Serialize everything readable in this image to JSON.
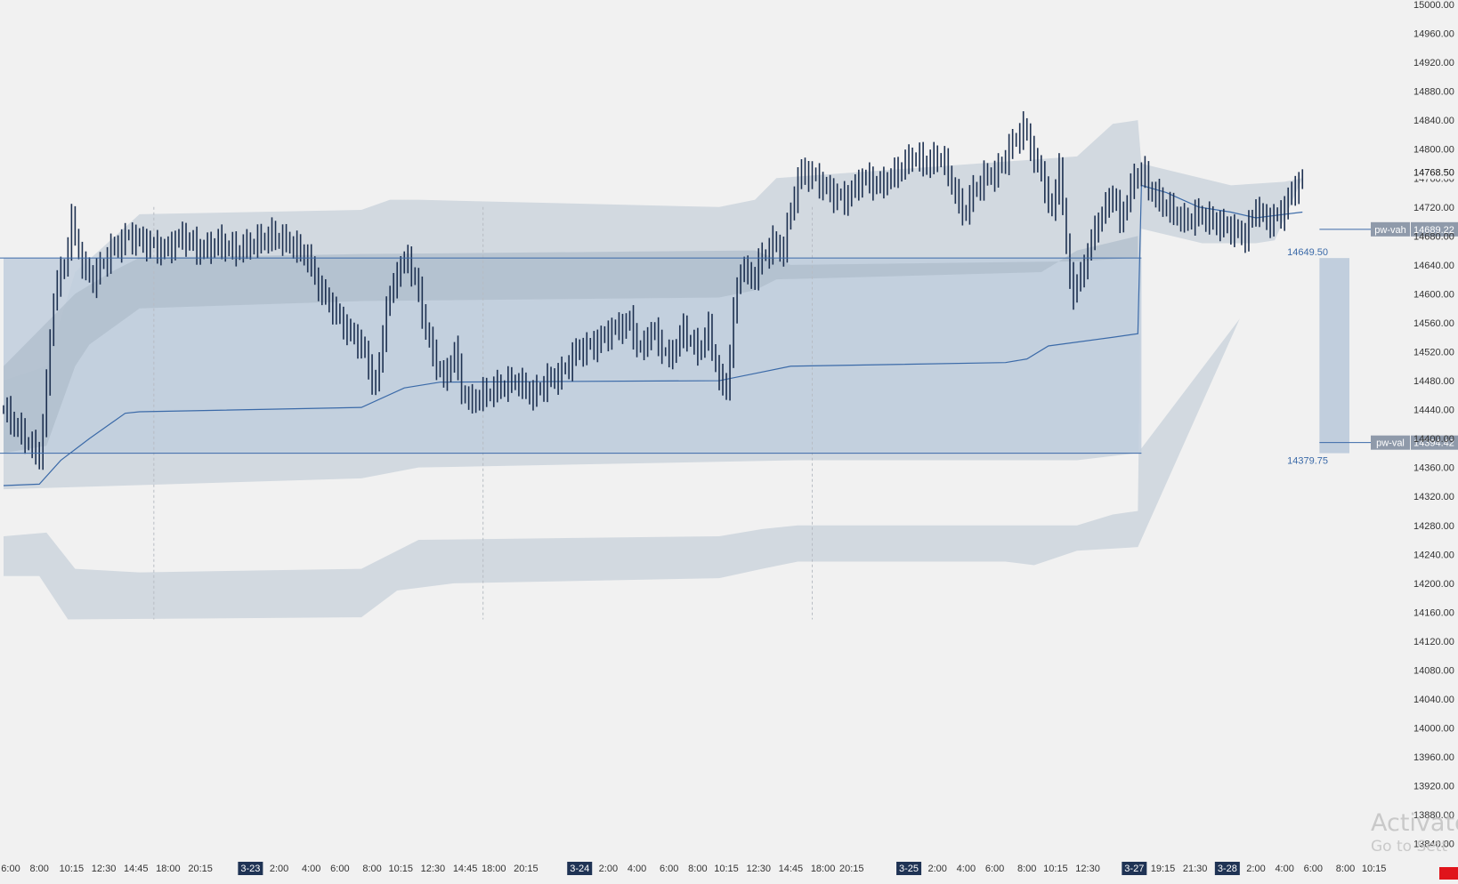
{
  "chart_data": {
    "type": "bar",
    "style": "ohlc-bars",
    "title": "",
    "xlabel": "",
    "ylabel": "",
    "ylim": [
      13820,
      15000
    ],
    "grid": false,
    "y_tick_step": 40,
    "x_ticks": [
      {
        "i": 0,
        "label": "6:00"
      },
      {
        "i": 10,
        "label": "8:00"
      },
      {
        "i": 19,
        "label": "10:15"
      },
      {
        "i": 28,
        "label": "12:30"
      },
      {
        "i": 37,
        "label": "14:45"
      },
      {
        "i": 46,
        "label": "18:00"
      },
      {
        "i": 55,
        "label": "20:15"
      },
      {
        "i": 69,
        "label": "3-23",
        "date": true
      },
      {
        "i": 77,
        "label": "2:00"
      },
      {
        "i": 86,
        "label": "4:00"
      },
      {
        "i": 94,
        "label": "6:00"
      },
      {
        "i": 103,
        "label": "8:00"
      },
      {
        "i": 111,
        "label": "10:15"
      },
      {
        "i": 120,
        "label": "12:30"
      },
      {
        "i": 129,
        "label": "14:45"
      },
      {
        "i": 137,
        "label": "18:00"
      },
      {
        "i": 146,
        "label": "20:15"
      },
      {
        "i": 161,
        "label": "3-24",
        "date": true
      },
      {
        "i": 169,
        "label": "2:00"
      },
      {
        "i": 177,
        "label": "4:00"
      },
      {
        "i": 186,
        "label": "6:00"
      },
      {
        "i": 194,
        "label": "8:00"
      },
      {
        "i": 202,
        "label": "10:15"
      },
      {
        "i": 211,
        "label": "12:30"
      },
      {
        "i": 220,
        "label": "14:45"
      },
      {
        "i": 229,
        "label": "18:00"
      },
      {
        "i": 237,
        "label": "20:15"
      },
      {
        "i": 253,
        "label": "3-25",
        "date": true
      },
      {
        "i": 261,
        "label": "2:00"
      },
      {
        "i": 269,
        "label": "4:00"
      },
      {
        "i": 277,
        "label": "6:00"
      },
      {
        "i": 286,
        "label": "8:00"
      },
      {
        "i": 294,
        "label": "10:15"
      },
      {
        "i": 303,
        "label": "12:30"
      },
      {
        "i": 316,
        "label": "3-27",
        "date": true
      },
      {
        "i": 324,
        "label": "19:15"
      },
      {
        "i": 333,
        "label": "21:30"
      },
      {
        "i": 342,
        "label": "3-28",
        "date": true
      },
      {
        "i": 350,
        "label": "2:00"
      },
      {
        "i": 358,
        "label": "4:00"
      },
      {
        "i": 366,
        "label": "6:00"
      },
      {
        "i": 375,
        "label": "8:00"
      },
      {
        "i": 383,
        "label": "10:15"
      }
    ],
    "session_separators": [
      42,
      134,
      226
    ],
    "closes": [
      [
        0,
        14440
      ],
      [
        6,
        14400
      ],
      [
        10,
        14375
      ],
      [
        12,
        14470
      ],
      [
        14,
        14600
      ],
      [
        17,
        14640
      ],
      [
        19,
        14700
      ],
      [
        22,
        14640
      ],
      [
        25,
        14620
      ],
      [
        30,
        14660
      ],
      [
        35,
        14680
      ],
      [
        40,
        14670
      ],
      [
        45,
        14660
      ],
      [
        50,
        14680
      ],
      [
        55,
        14660
      ],
      [
        60,
        14670
      ],
      [
        65,
        14660
      ],
      [
        70,
        14670
      ],
      [
        75,
        14680
      ],
      [
        80,
        14670
      ],
      [
        85,
        14650
      ],
      [
        88,
        14610
      ],
      [
        92,
        14580
      ],
      [
        96,
        14550
      ],
      [
        100,
        14530
      ],
      [
        104,
        14470
      ],
      [
        107,
        14580
      ],
      [
        110,
        14630
      ],
      [
        113,
        14650
      ],
      [
        116,
        14600
      ],
      [
        119,
        14530
      ],
      [
        123,
        14480
      ],
      [
        126,
        14520
      ],
      [
        128,
        14470
      ],
      [
        130,
        14450
      ],
      [
        134,
        14460
      ],
      [
        138,
        14470
      ],
      [
        143,
        14480
      ],
      [
        148,
        14460
      ],
      [
        152,
        14480
      ],
      [
        156,
        14490
      ],
      [
        160,
        14520
      ],
      [
        165,
        14530
      ],
      [
        170,
        14550
      ],
      [
        175,
        14560
      ],
      [
        178,
        14520
      ],
      [
        181,
        14550
      ],
      [
        186,
        14510
      ],
      [
        190,
        14550
      ],
      [
        194,
        14520
      ],
      [
        197,
        14550
      ],
      [
        200,
        14480
      ],
      [
        202,
        14470
      ],
      [
        204,
        14570
      ],
      [
        206,
        14640
      ],
      [
        209,
        14620
      ],
      [
        212,
        14650
      ],
      [
        215,
        14670
      ],
      [
        218,
        14660
      ],
      [
        220,
        14720
      ],
      [
        223,
        14770
      ],
      [
        227,
        14760
      ],
      [
        231,
        14740
      ],
      [
        235,
        14730
      ],
      [
        240,
        14760
      ],
      [
        245,
        14750
      ],
      [
        250,
        14770
      ],
      [
        254,
        14790
      ],
      [
        258,
        14780
      ],
      [
        262,
        14790
      ],
      [
        266,
        14740
      ],
      [
        268,
        14710
      ],
      [
        271,
        14740
      ],
      [
        274,
        14760
      ],
      [
        278,
        14770
      ],
      [
        281,
        14800
      ],
      [
        285,
        14830
      ],
      [
        288,
        14790
      ],
      [
        291,
        14750
      ],
      [
        293,
        14710
      ],
      [
        295,
        14780
      ],
      [
        297,
        14660
      ],
      [
        299,
        14600
      ],
      [
        302,
        14640
      ],
      [
        305,
        14690
      ],
      [
        308,
        14720
      ],
      [
        310,
        14740
      ],
      [
        312,
        14700
      ],
      [
        314,
        14730
      ],
      [
        316,
        14760
      ],
      [
        318,
        14770
      ],
      [
        321,
        14740
      ],
      [
        325,
        14720
      ],
      [
        330,
        14700
      ],
      [
        334,
        14710
      ],
      [
        338,
        14700
      ],
      [
        343,
        14690
      ],
      [
        347,
        14680
      ],
      [
        350,
        14720
      ],
      [
        353,
        14700
      ],
      [
        357,
        14710
      ],
      [
        360,
        14740
      ],
      [
        363,
        14760
      ]
    ],
    "series": [
      {
        "type": "value-area-fill",
        "from_i": 0,
        "to_i": 318,
        "upper": 14649.5,
        "lower": 14379.75
      },
      {
        "type": "vwap-line",
        "points": [
          [
            0,
            14335
          ],
          [
            10,
            14337
          ],
          [
            16,
            14370
          ],
          [
            24,
            14400
          ],
          [
            34,
            14435
          ],
          [
            38,
            14437
          ],
          [
            100,
            14443
          ],
          [
            112,
            14470
          ],
          [
            122,
            14478
          ],
          [
            200,
            14480
          ],
          [
            210,
            14490
          ],
          [
            220,
            14500
          ],
          [
            280,
            14505
          ],
          [
            286,
            14510
          ],
          [
            292,
            14528
          ],
          [
            310,
            14540
          ],
          [
            317,
            14545
          ],
          [
            318,
            14750
          ],
          [
            325,
            14740
          ],
          [
            334,
            14720
          ],
          [
            343,
            14713
          ],
          [
            350,
            14705
          ],
          [
            358,
            14710
          ],
          [
            363,
            14713
          ]
        ]
      },
      {
        "type": "inner-band-upper",
        "points": [
          [
            0,
            14500
          ],
          [
            20,
            14600
          ],
          [
            30,
            14630
          ],
          [
            38,
            14650
          ],
          [
            100,
            14655
          ],
          [
            210,
            14660
          ],
          [
            220,
            14640
          ],
          [
            300,
            14645
          ],
          [
            317,
            14650
          ]
        ]
      },
      {
        "type": "inner-band-lower",
        "points": [
          [
            0,
            14380
          ],
          [
            12,
            14390
          ],
          [
            20,
            14500
          ],
          [
            24,
            14530
          ],
          [
            38,
            14580
          ],
          [
            100,
            14590
          ],
          [
            200,
            14595
          ],
          [
            210,
            14605
          ],
          [
            216,
            14620
          ],
          [
            290,
            14630
          ],
          [
            300,
            14660
          ],
          [
            317,
            14680
          ]
        ]
      },
      {
        "type": "outer-band-upper",
        "points": [
          [
            0,
            14480
          ],
          [
            12,
            14500
          ],
          [
            20,
            14630
          ],
          [
            38,
            14710
          ],
          [
            100,
            14716
          ],
          [
            108,
            14730
          ],
          [
            116,
            14730
          ],
          [
            200,
            14720
          ],
          [
            210,
            14730
          ],
          [
            216,
            14760
          ],
          [
            300,
            14790
          ],
          [
            310,
            14835
          ],
          [
            317,
            14840
          ],
          [
            318,
            14780
          ],
          [
            343,
            14750
          ],
          [
            358,
            14755
          ],
          [
            363,
            14760
          ]
        ]
      },
      {
        "type": "outer-band-lower",
        "points": [
          [
            0,
            14265
          ],
          [
            12,
            14270
          ],
          [
            20,
            14220
          ],
          [
            38,
            14215
          ],
          [
            100,
            14220
          ],
          [
            110,
            14245
          ],
          [
            116,
            14260
          ],
          [
            200,
            14265
          ],
          [
            212,
            14275
          ],
          [
            222,
            14280
          ],
          [
            300,
            14280
          ],
          [
            310,
            14295
          ],
          [
            317,
            14300
          ],
          [
            318,
            14690
          ],
          [
            335,
            14670
          ],
          [
            350,
            14670
          ],
          [
            363,
            14680
          ]
        ]
      },
      {
        "type": "outer-band2-lower",
        "points": [
          [
            0,
            14210
          ],
          [
            10,
            14210
          ],
          [
            18,
            14150
          ],
          [
            100,
            14153
          ],
          [
            110,
            14190
          ],
          [
            126,
            14200
          ],
          [
            200,
            14207
          ],
          [
            212,
            14220
          ],
          [
            222,
            14230
          ],
          [
            280,
            14230
          ],
          [
            288,
            14225
          ],
          [
            300,
            14245
          ],
          [
            317,
            14250
          ]
        ]
      },
      {
        "type": "outer-band2-upper",
        "points": [
          [
            0,
            14330
          ],
          [
            100,
            14345
          ],
          [
            116,
            14360
          ],
          [
            222,
            14370
          ],
          [
            300,
            14370
          ],
          [
            317,
            14380
          ]
        ]
      }
    ],
    "levels": [
      {
        "name": "pw-vah",
        "value": 14689.22,
        "label": "14689.22"
      },
      {
        "name": "pw-val",
        "value": 14394.42,
        "label": "14394.42"
      },
      {
        "name": "vah-line",
        "value": 14649.5,
        "label": "14649.50"
      },
      {
        "name": "val-line",
        "value": 14379.75,
        "label": "14379.75"
      }
    ],
    "last_price": {
      "value": 14768.5,
      "label": "14768.50"
    },
    "projection_box": {
      "upper": 14649.5,
      "lower": 14379.75
    }
  },
  "watermark": {
    "line1": "Activate",
    "line2": "Go to Sett"
  },
  "colors": {
    "background": "#f1f1f1",
    "bar": "#1d3050",
    "vwap": "#3b6aa8",
    "value_area": "#c1cedd",
    "band_outer": "#d2d9e0",
    "band_inner": "#aebccb",
    "level_line": "#3b6aa8",
    "label_bg": "#8f9aaa",
    "date_tag_bg": "#1f3354",
    "axis_text": "#333333"
  }
}
